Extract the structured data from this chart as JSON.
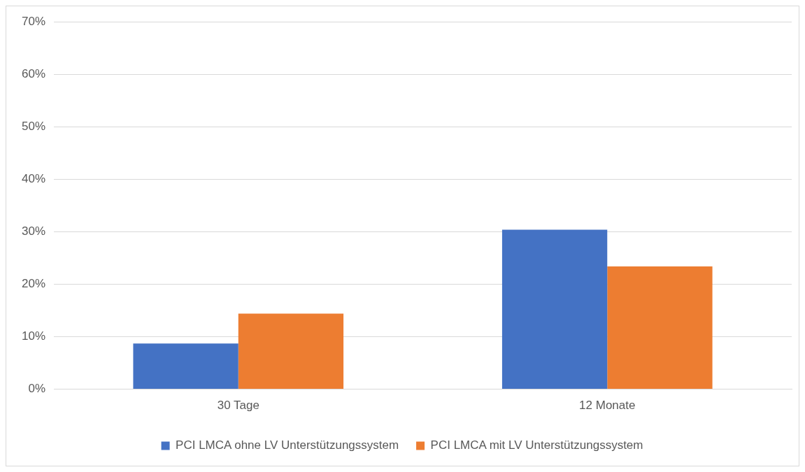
{
  "chart_data": {
    "type": "bar",
    "categories": [
      "30 Tage",
      "12 Monate"
    ],
    "series": [
      {
        "name": "PCI LMCA ohne LV Unterstützungssystem",
        "color": "#4472c4",
        "values": [
          8.7,
          30.4
        ]
      },
      {
        "name": "PCI LMCA mit LV Unterstützungssystem",
        "color": "#ed7d31",
        "values": [
          14.4,
          23.4
        ]
      }
    ],
    "ylim": [
      0,
      70
    ],
    "yticks": [
      {
        "value": 0,
        "label": "0%"
      },
      {
        "value": 10,
        "label": "10%"
      },
      {
        "value": 20,
        "label": "20%"
      },
      {
        "value": 30,
        "label": "30%"
      },
      {
        "value": 40,
        "label": "40%"
      },
      {
        "value": 50,
        "label": "50%"
      },
      {
        "value": 60,
        "label": "60%"
      },
      {
        "value": 70,
        "label": "70%"
      }
    ],
    "grid": "y",
    "legend": "bottom"
  }
}
